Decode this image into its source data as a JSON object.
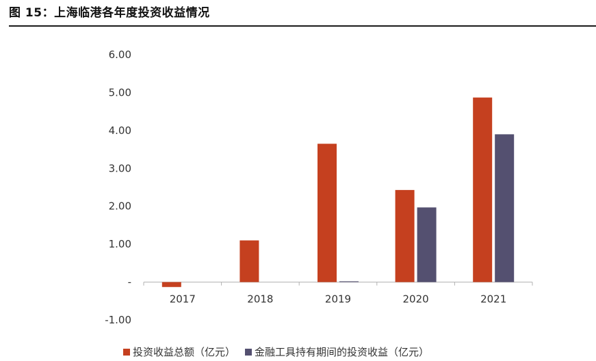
{
  "header": {
    "title": "图 15：上海临港各年度投资收益情况"
  },
  "colors": {
    "series1": "#c5401f",
    "series2": "#545070",
    "axis": "#b0b0b0",
    "text": "#333333"
  },
  "chart_data": {
    "type": "bar",
    "title": "图 15：上海临港各年度投资收益情况",
    "categories": [
      "2017",
      "2018",
      "2019",
      "2020",
      "2021"
    ],
    "series": [
      {
        "name": "投资收益总额（亿元）",
        "values": [
          -0.13,
          1.1,
          3.65,
          2.43,
          4.87
        ]
      },
      {
        "name": "金融工具持有期间的投资收益（亿元）",
        "values": [
          0,
          0,
          0.02,
          1.97,
          3.9
        ]
      }
    ],
    "ylim": [
      -1,
      6
    ],
    "yticks": [
      -1,
      0,
      1,
      2,
      3,
      4,
      5,
      6
    ],
    "ytick_labels": [
      "-1.00",
      "-",
      "1.00",
      "2.00",
      "3.00",
      "4.00",
      "5.00",
      "6.00"
    ],
    "xlabel": "",
    "ylabel": "",
    "grid": false,
    "legend": "bottom"
  }
}
